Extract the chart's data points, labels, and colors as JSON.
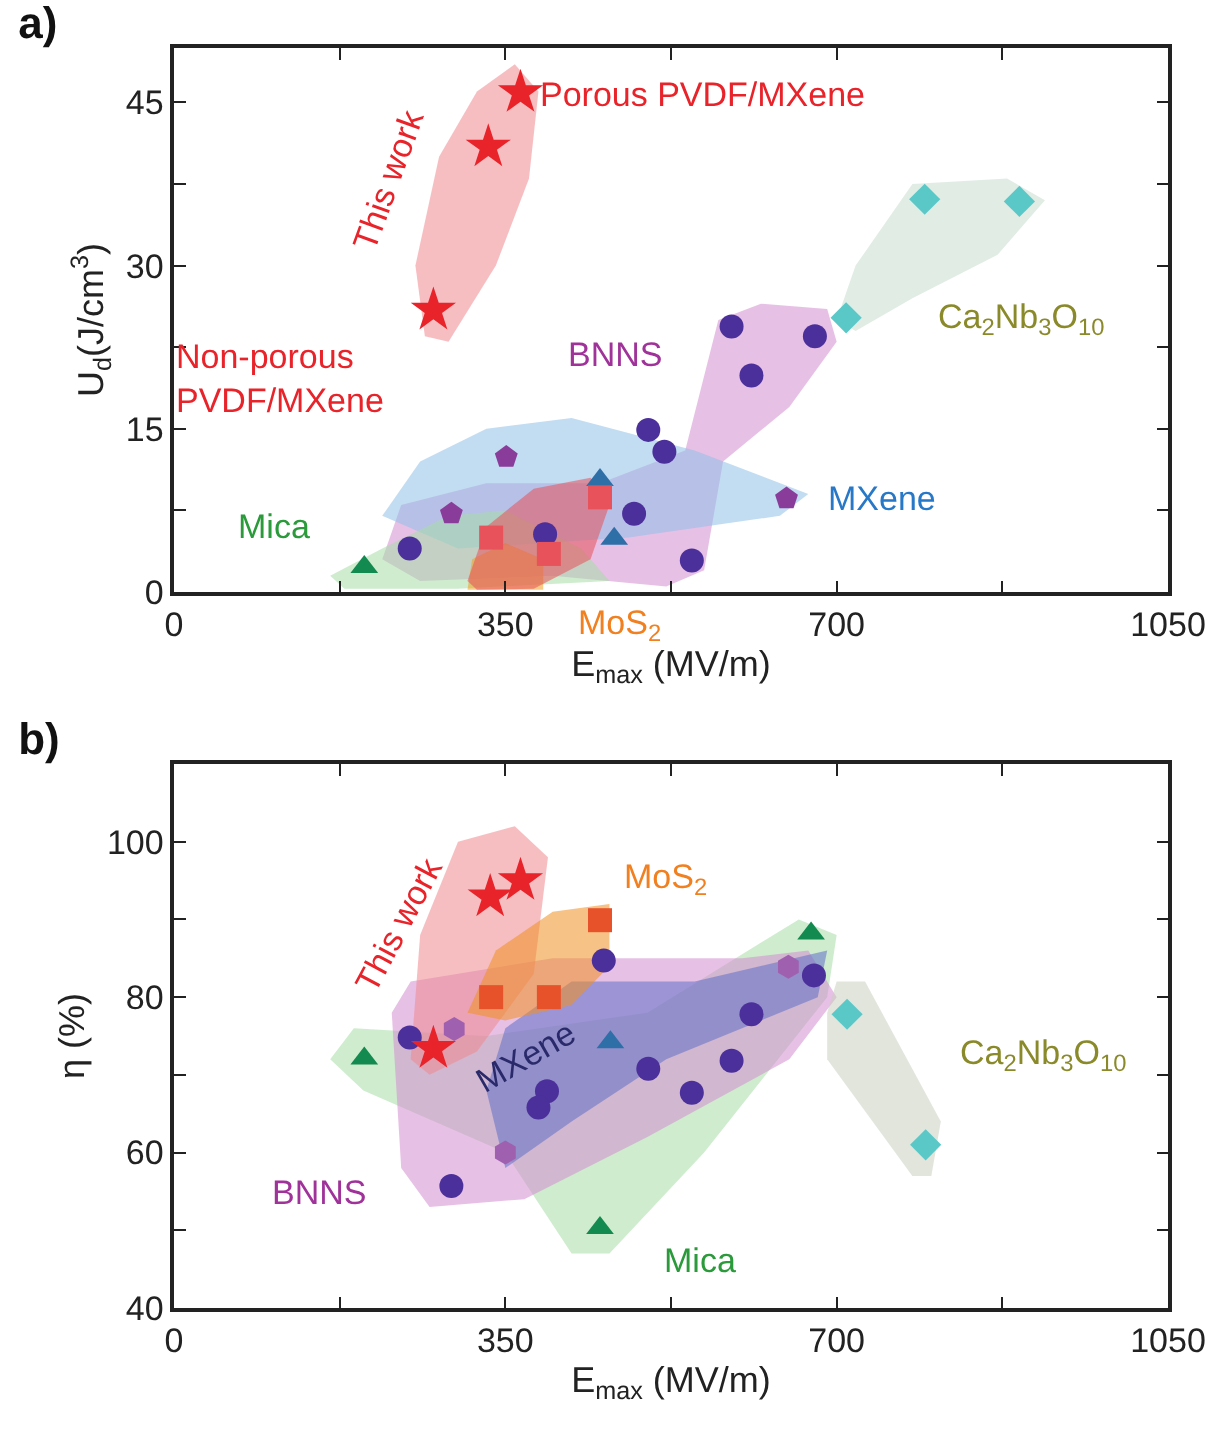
{
  "chart_data": [
    {
      "type": "scatter",
      "title": "a)",
      "xlabel": "E$_{max}$ (MV/m)",
      "ylabel": "U$_{d}$(J/cm$^{3}$)",
      "xlim": [
        0,
        1050
      ],
      "ylim": [
        0,
        50
      ],
      "xticks": [
        0,
        {
          "value": 175,
          "label": null
        },
        350,
        {
          "value": 525,
          "label": null
        },
        700,
        {
          "value": 875,
          "label": null
        },
        1050
      ],
      "yticks": [
        0,
        {
          "value": 7.5,
          "label": null
        },
        15,
        {
          "value": 22.5,
          "label": null
        },
        30,
        {
          "value": 37.5,
          "label": null
        },
        45
      ],
      "grid": false,
      "series": [
        {
          "type": "area",
          "color": "#c8dccf",
          "x": [
            700,
            720,
            780,
            880,
            920,
            870,
            780,
            720
          ],
          "values": [
            25,
            30,
            37.5,
            38,
            36,
            31,
            27,
            24
          ]
        },
        {
          "type": "area",
          "color": "#d48cd0",
          "x": [
            220,
            240,
            330,
            450,
            540,
            575,
            620,
            690,
            700,
            650,
            580,
            560,
            520,
            400,
            260
          ],
          "values": [
            3,
            8,
            10,
            10,
            13,
            25,
            26.5,
            26,
            23,
            17,
            12,
            2,
            0.5,
            1.5,
            1
          ]
        },
        {
          "type": "area",
          "color": "#90c0e8",
          "x": [
            220,
            260,
            330,
            420,
            550,
            670,
            640,
            480,
            300
          ],
          "values": [
            7,
            12,
            15,
            16,
            13,
            9,
            7,
            5,
            4
          ]
        },
        {
          "type": "area",
          "color": "#a8dca8",
          "x": [
            165,
            220,
            290,
            350,
            430,
            460,
            300,
            180
          ],
          "values": [
            1.5,
            4,
            7,
            7.5,
            4,
            1,
            0.3,
            0.3
          ]
        },
        {
          "type": "area",
          "color": "#f0a020",
          "x": [
            310,
            315,
            350,
            390,
            390
          ],
          "values": [
            0.2,
            3,
            4.5,
            3,
            0.2
          ]
        },
        {
          "type": "area",
          "color": "#e8505a",
          "x": [
            310,
            330,
            380,
            440,
            460,
            440,
            380,
            320
          ],
          "values": [
            1,
            6,
            9.5,
            10.5,
            8,
            3,
            0.3,
            0.2
          ]
        },
        {
          "type": "area",
          "color": "#f08890",
          "x": [
            265,
            255,
            280,
            320,
            360,
            385,
            375,
            340,
            290
          ],
          "values": [
            23.5,
            30,
            40,
            46,
            48.5,
            46,
            38,
            30,
            23
          ]
        },
        {
          "type": "scatter",
          "marker": "circle",
          "color": "#4b2f9a",
          "x": [
            249,
            486,
            547,
            501,
            518,
            589,
            610,
            677,
            392
          ],
          "values": [
            4.0,
            7.2,
            2.9,
            14.9,
            12.9,
            24.4,
            19.9,
            23.5,
            5.3
          ]
        },
        {
          "type": "scatter",
          "color": "#8a3c9a",
          "x": [
            293,
            351,
            647
          ],
          "values": [
            7.2,
            12.4,
            8.6
          ]
        },
        {
          "type": "scatter",
          "marker": "triangle",
          "color": "#138a4f",
          "x": [
            201
          ],
          "values": [
            2.3
          ]
        },
        {
          "type": "scatter",
          "marker": "triangle",
          "color": "#2e6fa8",
          "x": [
            450,
            465
          ],
          "values": [
            10.3,
            4.9
          ]
        },
        {
          "type": "scatter",
          "marker": "square",
          "color": "#e8525a",
          "x": [
            335,
            396,
            450
          ],
          "values": [
            5.0,
            3.5,
            8.7
          ]
        },
        {
          "type": "scatter",
          "marker": "diamond",
          "color": "#5bc8c8",
          "x": [
            710,
            793,
            893
          ],
          "values": [
            25.2,
            36.1,
            35.9
          ]
        },
        {
          "type": "scatter",
          "marker": "star",
          "color": "#e8232a",
          "x": [
            366,
            332,
            274
          ],
          "values": [
            45.9,
            40.9,
            25.9
          ]
        }
      ],
      "annotations": [
        "Porous PVDF/MXene",
        "This work",
        "Non-porous\nPVDF/MXene",
        "BNNS",
        "MXene",
        "Ca$_{2}$Nb$_{3}$O$_{10}$",
        "Mica",
        "MoS$_{2}$"
      ]
    },
    {
      "type": "scatter",
      "title": "b)",
      "xlabel": "E$_{max}$ (MV/m)",
      "ylabel": "η (%)",
      "xlim": [
        0,
        1050
      ],
      "ylim": [
        40,
        110
      ],
      "xticks": [
        0,
        {
          "value": 175,
          "label": null
        },
        350,
        {
          "value": 525,
          "label": null
        },
        700,
        {
          "value": 875,
          "label": null
        },
        1050
      ],
      "yticks": [
        40,
        {
          "value": 50,
          "label": null
        },
        60,
        {
          "value": 70,
          "label": null
        },
        80,
        {
          "value": 90,
          "label": null
        },
        100
      ],
      "grid": false,
      "series": [
        {
          "type": "area",
          "color": "#a8dca8",
          "x": [
            165,
            190,
            330,
            500,
            660,
            700,
            690,
            560,
            460,
            420,
            350,
            200
          ],
          "values": [
            72,
            76,
            75,
            78,
            90,
            88,
            80,
            60,
            47,
            47,
            60,
            68
          ]
        },
        {
          "type": "area",
          "color": "#d48cd0",
          "x": [
            230,
            250,
            400,
            600,
            670,
            700,
            650,
            500,
            370,
            270,
            240
          ],
          "values": [
            78,
            82,
            85,
            85,
            86,
            80,
            72,
            62,
            54,
            53,
            58
          ]
        },
        {
          "type": "area",
          "color": "#f08890",
          "x": [
            250,
            260,
            300,
            360,
            395,
            380,
            320,
            270
          ],
          "values": [
            72,
            88,
            100,
            102,
            98,
            83,
            73,
            70
          ]
        },
        {
          "type": "area",
          "color": "#6070c8",
          "x": [
            330,
            350,
            420,
            550,
            690,
            680,
            520,
            420,
            350
          ],
          "values": [
            68,
            76,
            82,
            82,
            86,
            80,
            72,
            64,
            58
          ]
        },
        {
          "type": "area",
          "color": "#f09020",
          "x": [
            310,
            340,
            400,
            460,
            460,
            420,
            350
          ],
          "values": [
            78,
            86,
            91,
            92,
            84,
            79,
            77
          ]
        },
        {
          "type": "area",
          "color": "#c8cfc0",
          "x": [
            690,
            700,
            730,
            810,
            800,
            780,
            690
          ],
          "values": [
            78,
            82,
            82,
            64,
            57,
            57,
            72
          ]
        },
        {
          "type": "scatter",
          "marker": "circle",
          "color": "#4b2f9a",
          "x": [
            454,
            249,
            293,
            394,
            385,
            501,
            547,
            589,
            610,
            676
          ],
          "values": [
            84.7,
            74.8,
            55.7,
            67.9,
            65.8,
            70.8,
            67.7,
            71.8,
            77.8,
            82.8
          ]
        },
        {
          "type": "scatter",
          "color": "#a060b0",
          "x": [
            296,
            350,
            649
          ],
          "values": [
            75.9,
            60.0,
            83.9
          ]
        },
        {
          "type": "scatter",
          "marker": "triangle",
          "color": "#138a4f",
          "x": [
            201,
            450,
            673
          ],
          "values": [
            72.1,
            50.3,
            88.2
          ]
        },
        {
          "type": "scatter",
          "marker": "triangle",
          "color": "#2e6fa8",
          "x": [
            461
          ],
          "values": [
            74.2
          ]
        },
        {
          "type": "scatter",
          "marker": "square",
          "color": "#e8522a",
          "x": [
            450,
            335,
            396
          ],
          "values": [
            89.9,
            80.0,
            80.0
          ]
        },
        {
          "type": "scatter",
          "marker": "diamond",
          "color": "#5bc8c8",
          "x": [
            711,
            794
          ],
          "values": [
            77.8,
            61.0
          ]
        },
        {
          "type": "scatter",
          "marker": "star",
          "color": "#e8232a",
          "x": [
            366,
            334,
            274
          ],
          "values": [
            95.0,
            92.9,
            73.4
          ]
        }
      ],
      "annotations": [
        "This work",
        "MoS$_{2}$",
        "MXene",
        "BNNS",
        "Mica",
        "Ca$_{2}$Nb$_{3}$O$_{10}$"
      ]
    }
  ]
}
